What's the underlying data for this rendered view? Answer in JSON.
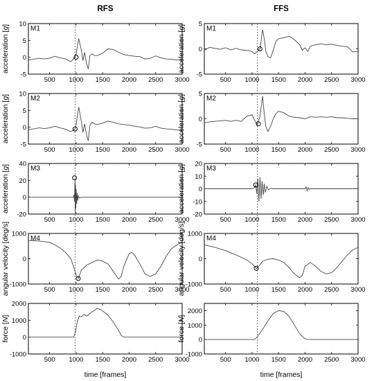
{
  "figure": {
    "columns": [
      "RFS",
      "FFS"
    ],
    "xlabel": "time [frames]"
  },
  "chart_data": [
    {
      "type": "line",
      "column": "RFS",
      "panel": "M1",
      "ylabel": "acceleration",
      "ylabel_unit": "g",
      "xlim": [
        100,
        3000
      ],
      "ylim": [
        -5,
        10
      ],
      "xticks": [
        500,
        1000,
        1500,
        2000,
        2500,
        3000
      ],
      "yticks": [
        -5,
        0,
        5,
        10
      ],
      "event_frame": 980,
      "marker": {
        "x": 1000,
        "y": 0
      },
      "series": [
        {
          "x": [
            100,
            200,
            300,
            400,
            500,
            600,
            700,
            800,
            900,
            980,
            1000,
            1050,
            1100,
            1130,
            1160,
            1200,
            1230,
            1260,
            1300,
            1350,
            1400,
            1500,
            1600,
            1700,
            1800,
            1900,
            2000,
            2100,
            2200,
            2300,
            2400,
            2500,
            2600,
            2700,
            2800,
            2900,
            3000
          ],
          "y": [
            -0.8,
            -0.6,
            -0.3,
            -0.5,
            -0.3,
            0.3,
            -0.2,
            -0.5,
            -1.3,
            0,
            1,
            5.5,
            2,
            -1,
            1.5,
            -2,
            -3.5,
            0.5,
            1,
            0.5,
            0.5,
            1.2,
            2.5,
            2.3,
            1.5,
            0.8,
            0.5,
            0.3,
            0.2,
            -0.5,
            -0.3,
            0.4,
            -0.2,
            -0.5,
            -0.6,
            -0.8,
            -0.8
          ]
        }
      ]
    },
    {
      "type": "line",
      "column": "RFS",
      "panel": "M2",
      "ylabel": "acceleration",
      "ylabel_unit": "g",
      "xlim": [
        100,
        3000
      ],
      "ylim": [
        -5,
        10
      ],
      "xticks": [
        500,
        1000,
        1500,
        2000,
        2500,
        3000
      ],
      "yticks": [
        -5,
        0,
        5,
        10
      ],
      "event_frame": 980,
      "marker": {
        "x": 980,
        "y": -0.5
      },
      "series": [
        {
          "x": [
            100,
            200,
            300,
            400,
            500,
            600,
            700,
            800,
            900,
            980,
            1000,
            1050,
            1100,
            1130,
            1160,
            1200,
            1230,
            1260,
            1300,
            1350,
            1400,
            1500,
            1600,
            1700,
            1800,
            1900,
            2000,
            2100,
            2200,
            2300,
            2400,
            2500,
            2600,
            2700,
            2800,
            2900,
            3000
          ],
          "y": [
            -0.7,
            -0.5,
            -0.2,
            -0.4,
            -0.2,
            0.3,
            -0.2,
            -0.6,
            -1.3,
            -0.5,
            0.8,
            6,
            1.5,
            -1.5,
            1,
            -2.5,
            -4,
            0.5,
            1.5,
            1,
            0.8,
            1.2,
            1.8,
            1.5,
            1,
            0.8,
            0.6,
            0.3,
            0.1,
            -0.3,
            -0.2,
            0.3,
            -0.3,
            -0.5,
            -0.6,
            -0.8,
            -1
          ]
        }
      ]
    },
    {
      "type": "line",
      "column": "RFS",
      "panel": "M3",
      "ylabel": "acceleration",
      "ylabel_unit": "g",
      "xlim": [
        100,
        3000
      ],
      "ylim": [
        -20,
        40
      ],
      "xticks": [
        500,
        1000,
        1500,
        2000,
        2500,
        3000
      ],
      "yticks": [
        -20,
        0,
        20,
        40
      ],
      "event_frame": 980,
      "marker": {
        "x": 970,
        "y": 23
      },
      "series": [
        {
          "x": [
            100,
            900,
            950,
            960,
            970,
            975,
            980,
            985,
            990,
            995,
            1000,
            1010,
            1020,
            1030,
            1040,
            1060,
            1100,
            3000
          ],
          "y": [
            0,
            0,
            0,
            3,
            -5,
            14,
            23,
            -18,
            15,
            -14,
            10,
            -8,
            5,
            -4,
            2,
            -1,
            0,
            0
          ]
        }
      ]
    },
    {
      "type": "line",
      "column": "RFS",
      "panel": "M4",
      "ylabel": "angular velocity",
      "ylabel_unit": "deg/s",
      "xlim": [
        100,
        3000
      ],
      "ylim": [
        -1000,
        1000
      ],
      "xticks": [
        500,
        1000,
        1500,
        2000,
        2500,
        3000
      ],
      "yticks": [
        -1000,
        0,
        1000
      ],
      "event_frame": 980,
      "marker": {
        "x": 1040,
        "y": -780
      },
      "series": [
        {
          "x": [
            100,
            300,
            500,
            600,
            700,
            800,
            900,
            950,
            1000,
            1040,
            1100,
            1200,
            1300,
            1400,
            1500,
            1600,
            1700,
            1800,
            1850,
            1900,
            2000,
            2050,
            2100,
            2200,
            2300,
            2400,
            2500,
            2600,
            2700,
            2800,
            2900,
            3000
          ],
          "y": [
            720,
            700,
            650,
            550,
            420,
            250,
            0,
            -300,
            -650,
            -780,
            -450,
            -250,
            -150,
            -50,
            -100,
            -200,
            -500,
            -800,
            -700,
            -300,
            200,
            250,
            150,
            -200,
            -600,
            -700,
            -600,
            -300,
            100,
            400,
            550,
            650
          ]
        }
      ]
    },
    {
      "type": "line",
      "column": "RFS",
      "panel": "",
      "ylabel": "force",
      "ylabel_unit": "N",
      "xlim": [
        100,
        3000
      ],
      "ylim": [
        -1000,
        2000
      ],
      "xticks": [
        500,
        1000,
        1500,
        2000,
        2500,
        3000
      ],
      "yticks": [
        -1000,
        0,
        1000,
        2000
      ],
      "event_frame": 980,
      "marker": null,
      "series": [
        {
          "x": [
            100,
            950,
            990,
            1020,
            1060,
            1100,
            1150,
            1200,
            1300,
            1400,
            1450,
            1500,
            1600,
            1700,
            1800,
            1850,
            1900,
            3000
          ],
          "y": [
            0,
            0,
            300,
            900,
            1250,
            1200,
            1350,
            1250,
            1500,
            1700,
            1650,
            1550,
            1300,
            900,
            400,
            100,
            0,
            0
          ]
        }
      ]
    },
    {
      "type": "line",
      "column": "FFS",
      "panel": "M1",
      "ylabel": "acceleration",
      "ylabel_unit": "g",
      "xlim": [
        100,
        3000
      ],
      "ylim": [
        -5,
        5
      ],
      "xticks": [
        500,
        1000,
        1500,
        2000,
        2500,
        3000
      ],
      "yticks": [
        -5,
        0,
        5
      ],
      "event_frame": 1100,
      "marker": {
        "x": 1150,
        "y": 0
      },
      "series": [
        {
          "x": [
            100,
            200,
            300,
            400,
            500,
            600,
            700,
            800,
            900,
            1000,
            1050,
            1100,
            1150,
            1200,
            1230,
            1260,
            1300,
            1350,
            1400,
            1450,
            1500,
            1600,
            1700,
            1800,
            1900,
            1950,
            2000,
            2050,
            2100,
            2150,
            2200,
            2300,
            2400,
            2500,
            2600,
            2700,
            2800,
            2900,
            3000
          ],
          "y": [
            -0.3,
            0.3,
            0.1,
            -0.1,
            0.2,
            -0.2,
            0.1,
            -0.2,
            -0.3,
            -0.5,
            -1,
            -0.5,
            0,
            3.8,
            2,
            -0.5,
            -1.5,
            -1.8,
            -0.3,
            1.5,
            2,
            2.2,
            2.5,
            1.8,
            0.8,
            -0.3,
            0.2,
            -0.5,
            0.5,
            0.7,
            0.8,
            1,
            0.8,
            0.9,
            0.7,
            0.5,
            0.4,
            -0.6,
            -0.5
          ]
        }
      ]
    },
    {
      "type": "line",
      "column": "FFS",
      "panel": "M2",
      "ylabel": "acceleration",
      "ylabel_unit": "g",
      "xlim": [
        100,
        3000
      ],
      "ylim": [
        -5,
        5
      ],
      "xticks": [
        500,
        1000,
        1500,
        2000,
        2500,
        3000
      ],
      "yticks": [
        -5,
        0,
        5
      ],
      "event_frame": 1100,
      "marker": {
        "x": 1120,
        "y": -1
      },
      "series": [
        {
          "x": [
            100,
            200,
            300,
            400,
            500,
            600,
            700,
            800,
            900,
            1000,
            1050,
            1100,
            1150,
            1200,
            1230,
            1260,
            1300,
            1350,
            1400,
            1450,
            1500,
            1600,
            1700,
            1800,
            1900,
            2000,
            2100,
            2200,
            2300,
            2400,
            2500,
            2600,
            2700,
            2800,
            2900,
            3000
          ],
          "y": [
            -0.8,
            -0.6,
            -0.5,
            -0.4,
            -0.3,
            -0.5,
            -0.3,
            -0.5,
            0.5,
            0.8,
            -0.3,
            -1.2,
            0.5,
            4.5,
            1,
            -1.5,
            -2.5,
            -1.5,
            0,
            1,
            1.5,
            1.2,
            0.5,
            0.3,
            0.2,
            0,
            0.4,
            0.3,
            0.4,
            0.3,
            0.4,
            0.2,
            0.2,
            0.1,
            0,
            0
          ]
        }
      ]
    },
    {
      "type": "line",
      "column": "FFS",
      "panel": "M3",
      "ylabel": "acceleration",
      "ylabel_unit": "g",
      "xlim": [
        100,
        3000
      ],
      "ylim": [
        -20,
        20
      ],
      "xticks": [
        500,
        1000,
        1500,
        2000,
        2500,
        3000
      ],
      "yticks": [
        -20,
        -10,
        0,
        10,
        20
      ],
      "event_frame": 1100,
      "marker": {
        "x": 1070,
        "y": 3
      },
      "series": [
        {
          "x": [
            100,
            1000,
            1050,
            1070,
            1090,
            1110,
            1130,
            1150,
            1170,
            1190,
            1210,
            1230,
            1250,
            1280,
            1310,
            1350,
            1400,
            2000,
            2020,
            2040,
            2060,
            2080,
            2100,
            3000
          ],
          "y": [
            0,
            0,
            1,
            3,
            -4,
            8,
            -10,
            9,
            -8,
            6,
            -5,
            4,
            -3,
            2,
            -1,
            0.5,
            0,
            0,
            1.5,
            -1.5,
            1,
            -0.5,
            0,
            0
          ]
        }
      ]
    },
    {
      "type": "line",
      "column": "FFS",
      "panel": "M4",
      "ylabel": "angular velocity",
      "ylabel_unit": "deg/s",
      "xlim": [
        100,
        3000
      ],
      "ylim": [
        -1000,
        1000
      ],
      "xticks": [
        500,
        1000,
        1500,
        2000,
        2500,
        3000
      ],
      "yticks": [
        -1000,
        0,
        1000
      ],
      "event_frame": 1100,
      "marker": {
        "x": 1080,
        "y": -380
      },
      "series": [
        {
          "x": [
            100,
            300,
            500,
            700,
            900,
            1000,
            1080,
            1150,
            1200,
            1300,
            1400,
            1500,
            1600,
            1700,
            1800,
            1900,
            1950,
            2000,
            2100,
            2200,
            2300,
            2400,
            2500,
            2600,
            2700,
            2800,
            2900,
            3000
          ],
          "y": [
            550,
            450,
            320,
            150,
            -50,
            -200,
            -380,
            -250,
            -100,
            -20,
            0,
            -50,
            -150,
            -350,
            -600,
            -750,
            -650,
            -300,
            -150,
            -300,
            -500,
            -600,
            -550,
            -350,
            -100,
            150,
            350,
            450
          ]
        }
      ]
    },
    {
      "type": "line",
      "column": "FFS",
      "panel": "",
      "ylabel": "force",
      "ylabel_unit": "N",
      "xlim": [
        100,
        3000
      ],
      "ylim": [
        -1000,
        2500
      ],
      "xticks": [
        500,
        1000,
        1500,
        2000,
        2500,
        3000
      ],
      "yticks": [
        -1000,
        0,
        1000,
        2000
      ],
      "event_frame": 1100,
      "marker": null,
      "series": [
        {
          "x": [
            100,
            1050,
            1100,
            1200,
            1300,
            1400,
            1500,
            1600,
            1700,
            1800,
            1900,
            2000,
            2050,
            3000
          ],
          "y": [
            0,
            0,
            200,
            700,
            1300,
            1800,
            2000,
            1950,
            1600,
            1000,
            400,
            50,
            0,
            0
          ]
        }
      ]
    }
  ]
}
